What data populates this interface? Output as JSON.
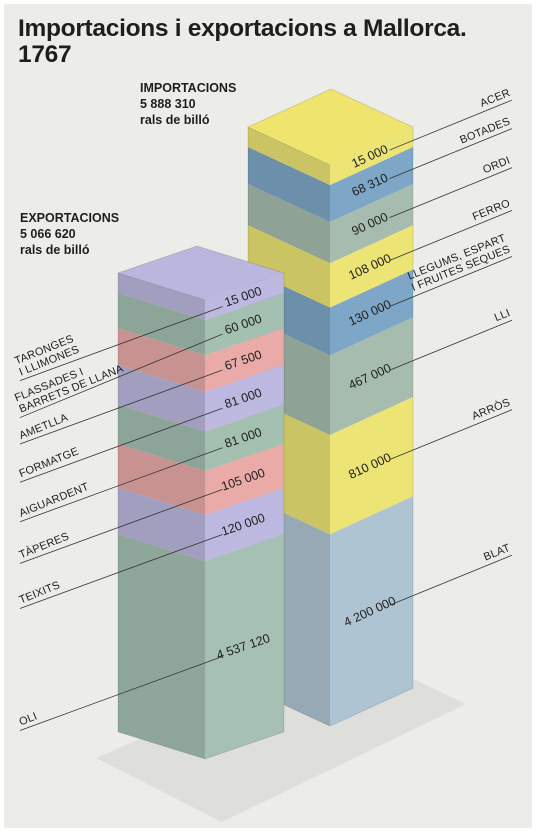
{
  "chart_data": {
    "type": "isometric-stack",
    "title": "Importacions i exportacions a Mallorca. 1767",
    "stacks": [
      {
        "name": "IMPORTACIONS",
        "total": 5888310,
        "total_label": "5 888 310",
        "unit": "rals de billó",
        "top_color": "#efe56e",
        "categories": [
          [
            "ACER"
          ],
          [
            "BOTADES"
          ],
          [
            "ORDI"
          ],
          [
            "FERRO"
          ],
          [
            "LLEGUMS, ESPART",
            "I FRUITES SEQUES"
          ],
          [
            "LLI"
          ],
          [
            "ARRÒS"
          ],
          [
            "BLAT"
          ]
        ],
        "values": [
          15000,
          68310,
          90000,
          108000,
          130000,
          467000,
          810000,
          4200000
        ],
        "value_labels": [
          "15 000",
          "68 310",
          "90 000",
          "108 000",
          "130 000",
          "467 000",
          "810 000",
          "4 200 000"
        ],
        "colors": [
          "#ece475",
          "#7ea6c6",
          "#a6bcae",
          "#ece475",
          "#7ea6c6",
          "#a6bcae",
          "#ece475",
          "#afc4d2"
        ]
      },
      {
        "name": "EXPORTACIONS",
        "total": 5066620,
        "total_label": "5 066 620",
        "unit": "rals de billó",
        "top_color": "#bab6de",
        "categories": [
          [
            "TARONGES",
            "I LLIMONES"
          ],
          [
            "FLASSADES I",
            "BARRETS DE LLANA"
          ],
          [
            "AMETLLA"
          ],
          [
            "FORMATGE"
          ],
          [
            "AIGUARDENT"
          ],
          [
            "TÀPERES"
          ],
          [
            "TEIXITS"
          ],
          [
            "OLI"
          ]
        ],
        "values": [
          15000,
          60000,
          67500,
          81000,
          81000,
          105000,
          120000,
          4537120
        ],
        "value_labels": [
          "15 000",
          "60 000",
          "67 500",
          "81 000",
          "81 000",
          "105 000",
          "120 000",
          "4 537 120"
        ],
        "colors": [
          "#bcb8df",
          "#a3c0b1",
          "#e9aaa8",
          "#bcb8df",
          "#a3c0b1",
          "#e9aaa8",
          "#bcb8df",
          "#a6c1b3"
        ]
      }
    ]
  }
}
